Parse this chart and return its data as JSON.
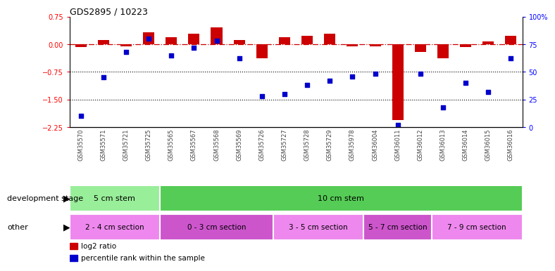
{
  "title": "GDS2895 / 10223",
  "samples": [
    "GSM35570",
    "GSM35571",
    "GSM35721",
    "GSM35725",
    "GSM35565",
    "GSM35567",
    "GSM35568",
    "GSM35569",
    "GSM35726",
    "GSM35727",
    "GSM35728",
    "GSM35729",
    "GSM35978",
    "GSM36004",
    "GSM36011",
    "GSM36012",
    "GSM36013",
    "GSM36014",
    "GSM36015",
    "GSM36016"
  ],
  "log2_ratio": [
    -0.08,
    0.12,
    -0.05,
    0.32,
    0.18,
    0.28,
    0.45,
    0.12,
    -0.38,
    0.18,
    0.22,
    0.28,
    -0.06,
    -0.05,
    -2.05,
    -0.22,
    -0.38,
    -0.08,
    0.08,
    0.22
  ],
  "percentile": [
    10,
    45,
    68,
    80,
    65,
    72,
    78,
    62,
    28,
    30,
    38,
    42,
    46,
    48,
    2,
    48,
    18,
    40,
    32,
    62
  ],
  "ylim_left": [
    -2.25,
    0.75
  ],
  "ylim_right": [
    0,
    100
  ],
  "yticks_left": [
    0.75,
    0.0,
    -0.75,
    -1.5,
    -2.25
  ],
  "yticks_right": [
    100,
    75,
    50,
    25,
    0
  ],
  "bar_color": "#cc0000",
  "dot_color": "#0000cc",
  "hline_color": "#cc0000",
  "dotline1": -0.75,
  "dotline2": -1.5,
  "dev_stage_groups": [
    {
      "label": "5 cm stem",
      "start": 0,
      "end": 4,
      "color": "#99ee99"
    },
    {
      "label": "10 cm stem",
      "start": 4,
      "end": 20,
      "color": "#55cc55"
    }
  ],
  "other_groups": [
    {
      "label": "2 - 4 cm section",
      "start": 0,
      "end": 4,
      "color": "#ee88ee"
    },
    {
      "label": "0 - 3 cm section",
      "start": 4,
      "end": 9,
      "color": "#cc55cc"
    },
    {
      "label": "3 - 5 cm section",
      "start": 9,
      "end": 13,
      "color": "#ee88ee"
    },
    {
      "label": "5 - 7 cm section",
      "start": 13,
      "end": 16,
      "color": "#cc55cc"
    },
    {
      "label": "7 - 9 cm section",
      "start": 16,
      "end": 20,
      "color": "#ee88ee"
    }
  ],
  "legend_bar_label": "log2 ratio",
  "legend_dot_label": "percentile rank within the sample",
  "dev_stage_label": "development stage",
  "other_label": "other"
}
